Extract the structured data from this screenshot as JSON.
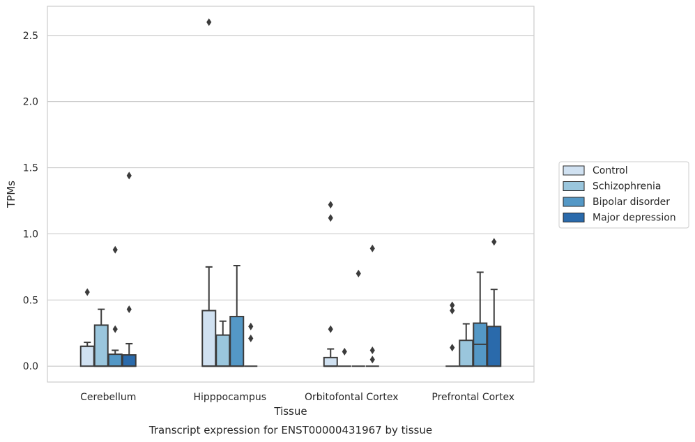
{
  "caption": "Transcript expression for ENST00000431967 by tissue",
  "chart_data": {
    "type": "box",
    "xlabel": "Tissue",
    "ylabel": "TPMs",
    "ylim": [
      -0.12,
      2.72
    ],
    "yticks": [
      "0.0",
      "0.5",
      "1.0",
      "1.5",
      "2.0",
      "2.5"
    ],
    "grid": true,
    "legend_position": "right",
    "categories": [
      "Cerebellum",
      "Hipppocampus",
      "Orbitofontal Cortex",
      "Prefrontal Cortex"
    ],
    "series": [
      {
        "name": "Control",
        "color": "#d0e1f1",
        "boxes": [
          {
            "q1": 0.0,
            "median": 0.15,
            "q3": 0.15,
            "wlo": 0.0,
            "whi": 0.18,
            "outliers": [
              0.56
            ]
          },
          {
            "q1": 0.0,
            "median": 0.0,
            "q3": 0.42,
            "wlo": 0.0,
            "whi": 0.75,
            "outliers": [
              2.6
            ]
          },
          {
            "q1": 0.0,
            "median": 0.0,
            "q3": 0.065,
            "wlo": 0.0,
            "whi": 0.13,
            "outliers": [
              0.28,
              1.12,
              1.22
            ]
          },
          {
            "q1": 0.0,
            "median": 0.0,
            "q3": 0.0,
            "wlo": 0.0,
            "whi": 0.0,
            "outliers": [
              0.14,
              0.42,
              0.46
            ]
          }
        ]
      },
      {
        "name": "Schizophrenia",
        "color": "#9ac6dd",
        "boxes": [
          {
            "q1": 0.0,
            "median": 0.0,
            "q3": 0.31,
            "wlo": 0.0,
            "whi": 0.43,
            "outliers": []
          },
          {
            "q1": 0.0,
            "median": 0.0,
            "q3": 0.235,
            "wlo": 0.0,
            "whi": 0.34,
            "outliers": []
          },
          {
            "q1": 0.0,
            "median": 0.0,
            "q3": 0.0,
            "wlo": 0.0,
            "whi": 0.0,
            "outliers": [
              0.11
            ]
          },
          {
            "q1": 0.0,
            "median": 0.0,
            "q3": 0.195,
            "wlo": 0.0,
            "whi": 0.32,
            "outliers": []
          }
        ]
      },
      {
        "name": "Bipolar disorder",
        "color": "#5498c6",
        "boxes": [
          {
            "q1": 0.0,
            "median": 0.0,
            "q3": 0.09,
            "wlo": 0.0,
            "whi": 0.12,
            "outliers": [
              0.28,
              0.88
            ]
          },
          {
            "q1": 0.0,
            "median": 0.0,
            "q3": 0.375,
            "wlo": 0.0,
            "whi": 0.76,
            "outliers": []
          },
          {
            "q1": 0.0,
            "median": 0.0,
            "q3": 0.0,
            "wlo": 0.0,
            "whi": 0.0,
            "outliers": [
              0.7
            ]
          },
          {
            "q1": 0.0,
            "median": 0.165,
            "q3": 0.325,
            "wlo": 0.0,
            "whi": 0.71,
            "outliers": []
          }
        ]
      },
      {
        "name": "Major depression",
        "color": "#2a6aab",
        "boxes": [
          {
            "q1": 0.0,
            "median": 0.0,
            "q3": 0.085,
            "wlo": 0.0,
            "whi": 0.17,
            "outliers": [
              0.43,
              1.44
            ]
          },
          {
            "q1": 0.0,
            "median": 0.0,
            "q3": 0.0,
            "wlo": 0.0,
            "whi": 0.0,
            "outliers": [
              0.21,
              0.3
            ]
          },
          {
            "q1": 0.0,
            "median": 0.0,
            "q3": 0.0,
            "wlo": 0.0,
            "whi": 0.0,
            "outliers": [
              0.05,
              0.12,
              0.89
            ]
          },
          {
            "q1": 0.0,
            "median": 0.0,
            "q3": 0.3,
            "wlo": 0.0,
            "whi": 0.58,
            "outliers": [
              0.94
            ]
          }
        ]
      }
    ]
  }
}
